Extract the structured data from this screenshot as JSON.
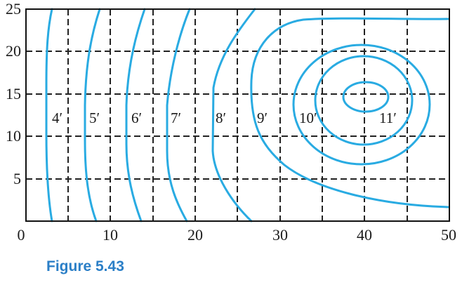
{
  "caption": "Figure 5.43",
  "colors": {
    "contour": "#29abe2",
    "caption": "#2b7fc7",
    "grid": "#222222",
    "border": "#111111"
  },
  "axes": {
    "x_ticks": [
      "0",
      "10",
      "20",
      "30",
      "40",
      "50"
    ],
    "y_ticks": [
      "5",
      "10",
      "15",
      "20",
      "25"
    ]
  },
  "contour_labels": [
    "4′",
    "5′",
    "6′",
    "7′",
    "8′",
    "9′",
    "10′",
    "11′"
  ]
}
